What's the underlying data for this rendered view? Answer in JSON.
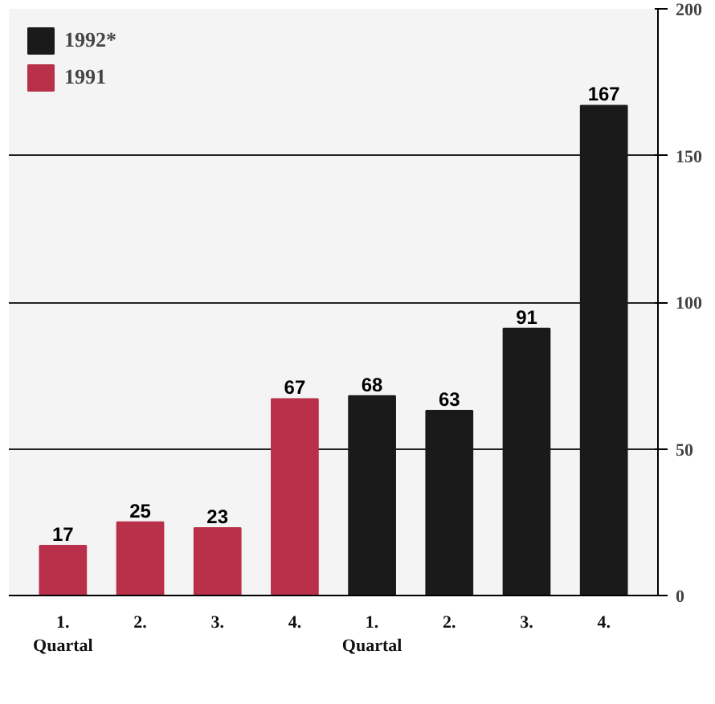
{
  "chart_data": {
    "type": "bar",
    "categories": [
      "1.",
      "2.",
      "3.",
      "4.",
      "1.",
      "2.",
      "3.",
      "4."
    ],
    "series": [
      {
        "name": "1992*",
        "color": "#1a1a1a",
        "values": [
          null,
          null,
          null,
          null,
          68,
          63,
          91,
          167
        ]
      },
      {
        "name": "1991",
        "color": "#b8304a",
        "values": [
          17,
          25,
          23,
          67,
          null,
          null,
          null,
          null
        ]
      }
    ],
    "ylim": [
      0,
      200
    ],
    "yticks": [
      0,
      50,
      100,
      150,
      200
    ],
    "grid": "y",
    "legend": "top left",
    "data_labels": true,
    "annotations": [
      "Quartal",
      "Quartal"
    ]
  }
}
